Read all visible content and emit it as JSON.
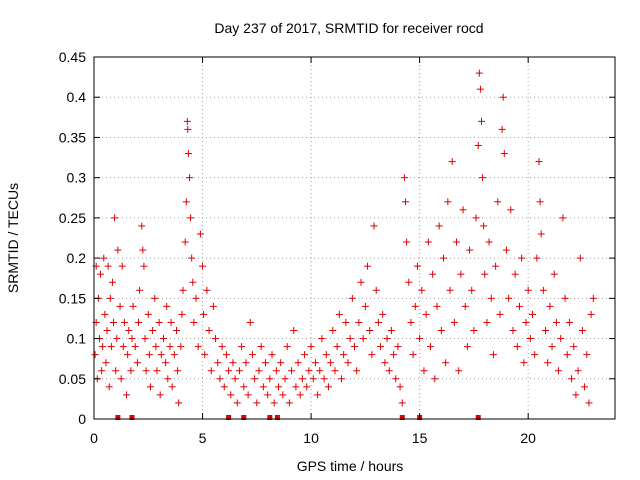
{
  "chart_data": {
    "type": "scatter",
    "title": "Day 237 of 2017, SRMTID for receiver rocd",
    "xlabel": "GPS time / hours",
    "ylabel": "SRMTID / TECUs",
    "xlim": [
      0,
      24
    ],
    "ylim": [
      0,
      0.45
    ],
    "x_ticks": [
      0,
      5,
      10,
      15,
      20
    ],
    "x_tick_labels": [
      "0",
      "5",
      "10",
      "15",
      "20"
    ],
    "y_ticks": [
      0,
      0.05,
      0.1,
      0.15,
      0.2,
      0.25,
      0.3,
      0.35,
      0.4,
      0.45
    ],
    "y_tick_labels": [
      "0",
      "0.05",
      "0.1",
      "0.15",
      "0.2",
      "0.25",
      "0.3",
      "0.35",
      "0.4",
      "0.45"
    ],
    "grid": true,
    "marker": "+",
    "color": "#e00000",
    "data_gap_markers_x": [
      1.1,
      1.75,
      6.2,
      6.9,
      8.1,
      8.45,
      14.2,
      15.0,
      17.7
    ],
    "series": [
      {
        "name": "SRMTID",
        "points": [
          [
            0.05,
            0.08
          ],
          [
            0.1,
            0.12
          ],
          [
            0.1,
            0.19
          ],
          [
            0.15,
            0.05
          ],
          [
            0.2,
            0.15
          ],
          [
            0.25,
            0.1
          ],
          [
            0.3,
            0.18
          ],
          [
            0.35,
            0.06
          ],
          [
            0.4,
            0.09
          ],
          [
            0.45,
            0.2
          ],
          [
            0.5,
            0.13
          ],
          [
            0.55,
            0.07
          ],
          [
            0.6,
            0.11
          ],
          [
            0.65,
            0.19
          ],
          [
            0.7,
            0.04
          ],
          [
            0.75,
            0.15
          ],
          [
            0.8,
            0.09
          ],
          [
            0.85,
            0.17
          ],
          [
            0.9,
            0.12
          ],
          [
            0.95,
            0.25
          ],
          [
            1.0,
            0.06
          ],
          [
            1.05,
            0.1
          ],
          [
            1.1,
            0.21
          ],
          [
            1.2,
            0.14
          ],
          [
            1.25,
            0.05
          ],
          [
            1.3,
            0.19
          ],
          [
            1.35,
            0.09
          ],
          [
            1.4,
            0.12
          ],
          [
            1.5,
            0.03
          ],
          [
            1.55,
            0.08
          ],
          [
            1.6,
            0.11
          ],
          [
            1.7,
            0.06
          ],
          [
            1.75,
            0.1
          ],
          [
            1.8,
            0.14
          ],
          [
            1.9,
            0.09
          ],
          [
            2.0,
            0.07
          ],
          [
            2.05,
            0.12
          ],
          [
            2.1,
            0.16
          ],
          [
            2.2,
            0.24
          ],
          [
            2.25,
            0.21
          ],
          [
            2.3,
            0.19
          ],
          [
            2.35,
            0.1
          ],
          [
            2.4,
            0.06
          ],
          [
            2.5,
            0.13
          ],
          [
            2.55,
            0.08
          ],
          [
            2.6,
            0.04
          ],
          [
            2.7,
            0.11
          ],
          [
            2.8,
            0.15
          ],
          [
            2.85,
            0.09
          ],
          [
            2.9,
            0.06
          ],
          [
            3.0,
            0.12
          ],
          [
            3.05,
            0.03
          ],
          [
            3.1,
            0.08
          ],
          [
            3.2,
            0.1
          ],
          [
            3.3,
            0.07
          ],
          [
            3.35,
            0.14
          ],
          [
            3.4,
            0.05
          ],
          [
            3.5,
            0.09
          ],
          [
            3.55,
            0.12
          ],
          [
            3.6,
            0.04
          ],
          [
            3.7,
            0.08
          ],
          [
            3.8,
            0.11
          ],
          [
            3.85,
            0.06
          ],
          [
            3.9,
            0.02
          ],
          [
            4.0,
            0.09
          ],
          [
            4.05,
            0.13
          ],
          [
            4.1,
            0.16
          ],
          [
            4.2,
            0.22
          ],
          [
            4.25,
            0.27
          ],
          [
            4.3,
            0.37
          ],
          [
            4.32,
            0.36
          ],
          [
            4.35,
            0.33
          ],
          [
            4.4,
            0.3
          ],
          [
            4.45,
            0.25
          ],
          [
            4.5,
            0.2
          ],
          [
            4.55,
            0.17
          ],
          [
            4.6,
            0.12
          ],
          [
            4.7,
            0.15
          ],
          [
            4.8,
            0.09
          ],
          [
            4.9,
            0.23
          ],
          [
            5.0,
            0.19
          ],
          [
            5.05,
            0.13
          ],
          [
            5.1,
            0.08
          ],
          [
            5.2,
            0.16
          ],
          [
            5.3,
            0.11
          ],
          [
            5.4,
            0.06
          ],
          [
            5.5,
            0.14
          ],
          [
            5.6,
            0.1
          ],
          [
            5.7,
            0.07
          ],
          [
            5.8,
            0.05
          ],
          [
            5.9,
            0.09
          ],
          [
            6.0,
            0.04
          ],
          [
            6.1,
            0.08
          ],
          [
            6.2,
            0.06
          ],
          [
            6.3,
            0.03
          ],
          [
            6.4,
            0.07
          ],
          [
            6.5,
            0.05
          ],
          [
            6.6,
            0.02
          ],
          [
            6.7,
            0.06
          ],
          [
            6.8,
            0.09
          ],
          [
            6.9,
            0.04
          ],
          [
            7.0,
            0.07
          ],
          [
            7.1,
            0.03
          ],
          [
            7.2,
            0.12
          ],
          [
            7.3,
            0.08
          ],
          [
            7.4,
            0.05
          ],
          [
            7.5,
            0.02
          ],
          [
            7.6,
            0.06
          ],
          [
            7.7,
            0.09
          ],
          [
            7.8,
            0.04
          ],
          [
            7.9,
            0.07
          ],
          [
            8.0,
            0.03
          ],
          [
            8.1,
            0.05
          ],
          [
            8.2,
            0.08
          ],
          [
            8.3,
            0.02
          ],
          [
            8.4,
            0.06
          ],
          [
            8.5,
            0.04
          ],
          [
            8.6,
            0.07
          ],
          [
            8.7,
            0.03
          ],
          [
            8.8,
            0.05
          ],
          [
            8.9,
            0.09
          ],
          [
            9.0,
            0.02
          ],
          [
            9.1,
            0.06
          ],
          [
            9.2,
            0.11
          ],
          [
            9.3,
            0.04
          ],
          [
            9.4,
            0.07
          ],
          [
            9.5,
            0.03
          ],
          [
            9.6,
            0.05
          ],
          [
            9.7,
            0.08
          ],
          [
            9.8,
            0.04
          ],
          [
            9.9,
            0.06
          ],
          [
            10.0,
            0.09
          ],
          [
            10.1,
            0.05
          ],
          [
            10.2,
            0.07
          ],
          [
            10.3,
            0.03
          ],
          [
            10.4,
            0.06
          ],
          [
            10.5,
            0.1
          ],
          [
            10.6,
            0.05
          ],
          [
            10.7,
            0.08
          ],
          [
            10.8,
            0.04
          ],
          [
            10.9,
            0.07
          ],
          [
            11.0,
            0.11
          ],
          [
            11.1,
            0.06
          ],
          [
            11.2,
            0.09
          ],
          [
            11.3,
            0.13
          ],
          [
            11.4,
            0.05
          ],
          [
            11.5,
            0.08
          ],
          [
            11.6,
            0.12
          ],
          [
            11.7,
            0.07
          ],
          [
            11.8,
            0.1
          ],
          [
            11.9,
            0.15
          ],
          [
            12.0,
            0.09
          ],
          [
            12.1,
            0.06
          ],
          [
            12.2,
            0.12
          ],
          [
            12.3,
            0.17
          ],
          [
            12.4,
            0.1
          ],
          [
            12.5,
            0.14
          ],
          [
            12.6,
            0.19
          ],
          [
            12.7,
            0.11
          ],
          [
            12.8,
            0.08
          ],
          [
            12.9,
            0.24
          ],
          [
            13.0,
            0.16
          ],
          [
            13.1,
            0.12
          ],
          [
            13.2,
            0.09
          ],
          [
            13.3,
            0.13
          ],
          [
            13.4,
            0.07
          ],
          [
            13.5,
            0.1
          ],
          [
            13.6,
            0.06
          ],
          [
            13.7,
            0.11
          ],
          [
            13.8,
            0.08
          ],
          [
            13.9,
            0.05
          ],
          [
            14.0,
            0.09
          ],
          [
            14.1,
            0.04
          ],
          [
            14.2,
            0.02
          ],
          [
            14.3,
            0.3
          ],
          [
            14.35,
            0.27
          ],
          [
            14.4,
            0.22
          ],
          [
            14.5,
            0.17
          ],
          [
            14.6,
            0.12
          ],
          [
            14.7,
            0.08
          ],
          [
            14.8,
            0.14
          ],
          [
            14.9,
            0.19
          ],
          [
            15.0,
            0.1
          ],
          [
            15.1,
            0.16
          ],
          [
            15.2,
            0.06
          ],
          [
            15.3,
            0.13
          ],
          [
            15.4,
            0.22
          ],
          [
            15.5,
            0.09
          ],
          [
            15.6,
            0.18
          ],
          [
            15.7,
            0.05
          ],
          [
            15.8,
            0.14
          ],
          [
            15.9,
            0.24
          ],
          [
            16.0,
            0.11
          ],
          [
            16.1,
            0.2
          ],
          [
            16.2,
            0.07
          ],
          [
            16.3,
            0.27
          ],
          [
            16.4,
            0.16
          ],
          [
            16.5,
            0.32
          ],
          [
            16.6,
            0.12
          ],
          [
            16.7,
            0.22
          ],
          [
            16.8,
            0.06
          ],
          [
            16.9,
            0.18
          ],
          [
            17.0,
            0.26
          ],
          [
            17.1,
            0.14
          ],
          [
            17.2,
            0.09
          ],
          [
            17.3,
            0.21
          ],
          [
            17.4,
            0.16
          ],
          [
            17.5,
            0.11
          ],
          [
            17.6,
            0.25
          ],
          [
            17.7,
            0.34
          ],
          [
            17.75,
            0.43
          ],
          [
            17.8,
            0.41
          ],
          [
            17.85,
            0.37
          ],
          [
            17.9,
            0.3
          ],
          [
            17.95,
            0.24
          ],
          [
            18.0,
            0.18
          ],
          [
            18.1,
            0.12
          ],
          [
            18.2,
            0.22
          ],
          [
            18.3,
            0.15
          ],
          [
            18.4,
            0.08
          ],
          [
            18.5,
            0.19
          ],
          [
            18.6,
            0.27
          ],
          [
            18.7,
            0.13
          ],
          [
            18.8,
            0.36
          ],
          [
            18.85,
            0.4
          ],
          [
            18.9,
            0.33
          ],
          [
            19.0,
            0.21
          ],
          [
            19.1,
            0.15
          ],
          [
            19.2,
            0.26
          ],
          [
            19.3,
            0.11
          ],
          [
            19.4,
            0.18
          ],
          [
            19.5,
            0.09
          ],
          [
            19.6,
            0.14
          ],
          [
            19.7,
            0.2
          ],
          [
            19.8,
            0.07
          ],
          [
            19.9,
            0.12
          ],
          [
            20.0,
            0.16
          ],
          [
            20.1,
            0.1
          ],
          [
            20.2,
            0.13
          ],
          [
            20.3,
            0.08
          ],
          [
            20.4,
            0.2
          ],
          [
            20.5,
            0.32
          ],
          [
            20.55,
            0.27
          ],
          [
            20.6,
            0.23
          ],
          [
            20.7,
            0.16
          ],
          [
            20.8,
            0.11
          ],
          [
            20.9,
            0.07
          ],
          [
            21.0,
            0.14
          ],
          [
            21.1,
            0.09
          ],
          [
            21.2,
            0.18
          ],
          [
            21.3,
            0.12
          ],
          [
            21.4,
            0.06
          ],
          [
            21.5,
            0.1
          ],
          [
            21.6,
            0.25
          ],
          [
            21.7,
            0.15
          ],
          [
            21.8,
            0.08
          ],
          [
            21.9,
            0.12
          ],
          [
            22.0,
            0.05
          ],
          [
            22.1,
            0.09
          ],
          [
            22.2,
            0.03
          ],
          [
            22.3,
            0.06
          ],
          [
            22.4,
            0.2
          ],
          [
            22.5,
            0.11
          ],
          [
            22.6,
            0.04
          ],
          [
            22.7,
            0.08
          ],
          [
            22.8,
            0.02
          ],
          [
            22.9,
            0.13
          ],
          [
            23.0,
            0.15
          ]
        ]
      }
    ]
  }
}
